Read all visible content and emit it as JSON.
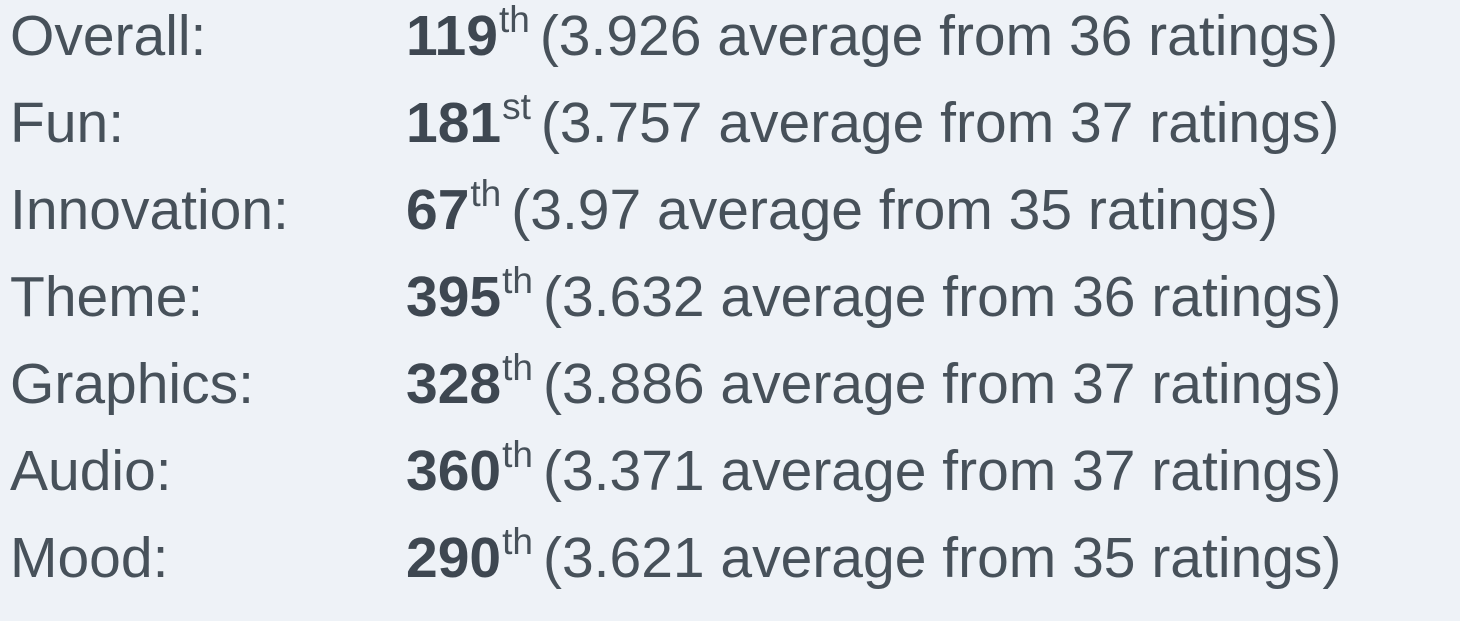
{
  "ratings": [
    {
      "category": "Overall:",
      "rank": "119",
      "suffix": "th",
      "detail": "(3.926 average from 36 ratings)"
    },
    {
      "category": "Fun:",
      "rank": "181",
      "suffix": "st",
      "detail": "(3.757 average from 37 ratings)"
    },
    {
      "category": "Innovation:",
      "rank": "67",
      "suffix": "th",
      "detail": "(3.97 average from 35 ratings)"
    },
    {
      "category": "Theme:",
      "rank": "395",
      "suffix": "th",
      "detail": "(3.632 average from 36 ratings)"
    },
    {
      "category": "Graphics:",
      "rank": "328",
      "suffix": "th",
      "detail": "(3.886 average from 37 ratings)"
    },
    {
      "category": "Audio:",
      "rank": "360",
      "suffix": "th",
      "detail": "(3.371 average from 37 ratings)"
    },
    {
      "category": "Mood:",
      "rank": "290",
      "suffix": "th",
      "detail": "(3.621 average from 35 ratings)"
    }
  ]
}
